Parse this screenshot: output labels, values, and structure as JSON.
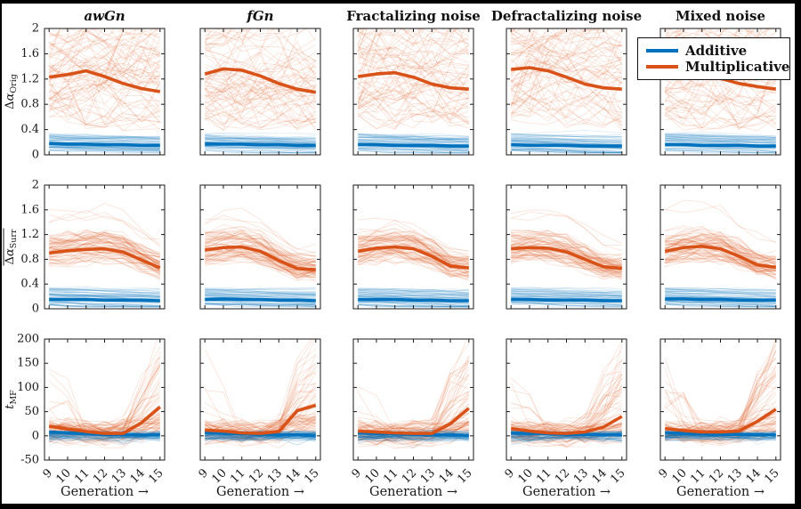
{
  "figure": {
    "columns": [
      {
        "label": "awGn"
      },
      {
        "label": "fGn"
      },
      {
        "label": "Fractalizing noise"
      },
      {
        "label": "Defractalizing noise"
      },
      {
        "label": "Mixed noise"
      }
    ],
    "xlabel": "Generation →",
    "x_ticks": [
      "9",
      "10",
      "11",
      "12",
      "13",
      "14",
      "15"
    ],
    "rows": [
      {
        "ylabel": {
          "base": "Δα",
          "sub": "Orig",
          "overline": false,
          "italic": false
        },
        "ylim": [
          0,
          2
        ],
        "yticks": [
          "0",
          "0.4",
          "0.8",
          "1.2",
          "1.6",
          "2"
        ]
      },
      {
        "ylabel": {
          "base": "Δα",
          "sub": "Surr",
          "overline": true,
          "italic": false
        },
        "ylim": [
          0,
          2
        ],
        "yticks": [
          "0",
          "0.4",
          "0.8",
          "1.2",
          "1.6",
          "2"
        ]
      },
      {
        "ylabel": {
          "base": "t",
          "sub": "MF",
          "overline": false,
          "italic": true
        },
        "ylim": [
          -50,
          200
        ],
        "yticks": [
          "-50",
          "0",
          "50",
          "100",
          "150",
          "200"
        ]
      }
    ]
  },
  "legend": {
    "items": [
      {
        "label": "Additive",
        "color": "#0072BD"
      },
      {
        "label": "Multiplicative",
        "color": "#D95319"
      }
    ]
  },
  "colors": {
    "additive": "#0072BD",
    "multiplicative": "#D95319",
    "frame": "#1a1a1a"
  },
  "chart_data": [
    {
      "row": 1,
      "col": 1,
      "column": "awGn",
      "metric": "Δα_Orig",
      "type": "line",
      "x": [
        9,
        10,
        11,
        12,
        13,
        14,
        15
      ],
      "ylim": [
        0,
        2
      ],
      "series": [
        {
          "name": "Additive",
          "values": [
            0.18,
            0.17,
            0.17,
            0.16,
            0.16,
            0.15,
            0.15
          ]
        },
        {
          "name": "Multiplicative",
          "values": [
            1.23,
            1.27,
            1.33,
            1.24,
            1.13,
            1.05,
            1.0
          ]
        }
      ]
    },
    {
      "row": 1,
      "col": 2,
      "column": "fGn",
      "metric": "Δα_Orig",
      "type": "line",
      "x": [
        9,
        10,
        11,
        12,
        13,
        14,
        15
      ],
      "ylim": [
        0,
        2
      ],
      "series": [
        {
          "name": "Additive",
          "values": [
            0.17,
            0.17,
            0.17,
            0.16,
            0.16,
            0.15,
            0.15
          ]
        },
        {
          "name": "Multiplicative",
          "values": [
            1.28,
            1.36,
            1.34,
            1.25,
            1.13,
            1.04,
            0.99
          ]
        }
      ]
    },
    {
      "row": 1,
      "col": 3,
      "column": "Fractalizing noise",
      "metric": "Δα_Orig",
      "type": "line",
      "x": [
        9,
        10,
        11,
        12,
        13,
        14,
        15
      ],
      "ylim": [
        0,
        2
      ],
      "series": [
        {
          "name": "Additive",
          "values": [
            0.16,
            0.16,
            0.15,
            0.15,
            0.15,
            0.14,
            0.14
          ]
        },
        {
          "name": "Multiplicative",
          "values": [
            1.24,
            1.28,
            1.3,
            1.23,
            1.12,
            1.06,
            1.04
          ]
        }
      ]
    },
    {
      "row": 1,
      "col": 4,
      "column": "Defractalizing noise",
      "metric": "Δα_Orig",
      "type": "line",
      "x": [
        9,
        10,
        11,
        12,
        13,
        14,
        15
      ],
      "ylim": [
        0,
        2
      ],
      "series": [
        {
          "name": "Additive",
          "values": [
            0.16,
            0.15,
            0.15,
            0.15,
            0.14,
            0.14,
            0.14
          ]
        },
        {
          "name": "Multiplicative",
          "values": [
            1.35,
            1.38,
            1.33,
            1.23,
            1.12,
            1.06,
            1.04
          ]
        }
      ]
    },
    {
      "row": 1,
      "col": 5,
      "column": "Mixed noise",
      "metric": "Δα_Orig",
      "type": "line",
      "x": [
        9,
        10,
        11,
        12,
        13,
        14,
        15
      ],
      "ylim": [
        0,
        2
      ],
      "series": [
        {
          "name": "Additive",
          "values": [
            0.16,
            0.16,
            0.15,
            0.15,
            0.15,
            0.14,
            0.14
          ]
        },
        {
          "name": "Multiplicative",
          "values": [
            1.29,
            1.32,
            1.29,
            1.21,
            1.13,
            1.08,
            1.04
          ]
        }
      ]
    },
    {
      "row": 2,
      "col": 1,
      "column": "awGn",
      "metric": "Δα_Surr (mean)",
      "type": "line",
      "x": [
        9,
        10,
        11,
        12,
        13,
        14,
        15
      ],
      "ylim": [
        0,
        2
      ],
      "series": [
        {
          "name": "Additive",
          "values": [
            0.15,
            0.15,
            0.15,
            0.14,
            0.14,
            0.14,
            0.13
          ]
        },
        {
          "name": "Multiplicative",
          "values": [
            0.9,
            0.94,
            0.96,
            0.97,
            0.92,
            0.79,
            0.66
          ]
        }
      ]
    },
    {
      "row": 2,
      "col": 2,
      "column": "fGn",
      "metric": "Δα_Surr (mean)",
      "type": "line",
      "x": [
        9,
        10,
        11,
        12,
        13,
        14,
        15
      ],
      "ylim": [
        0,
        2
      ],
      "series": [
        {
          "name": "Additive",
          "values": [
            0.15,
            0.16,
            0.15,
            0.15,
            0.14,
            0.14,
            0.13
          ]
        },
        {
          "name": "Multiplicative",
          "values": [
            0.95,
            0.99,
            1.0,
            0.93,
            0.78,
            0.65,
            0.63
          ]
        }
      ]
    },
    {
      "row": 2,
      "col": 3,
      "column": "Fractalizing noise",
      "metric": "Δα_Surr (mean)",
      "type": "line",
      "x": [
        9,
        10,
        11,
        12,
        13,
        14,
        15
      ],
      "ylim": [
        0,
        2
      ],
      "series": [
        {
          "name": "Additive",
          "values": [
            0.15,
            0.15,
            0.15,
            0.14,
            0.14,
            0.13,
            0.13
          ]
        },
        {
          "name": "Multiplicative",
          "values": [
            0.93,
            0.98,
            1.0,
            0.97,
            0.85,
            0.69,
            0.66
          ]
        }
      ]
    },
    {
      "row": 2,
      "col": 4,
      "column": "Defractalizing noise",
      "metric": "Δα_Surr (mean)",
      "type": "line",
      "x": [
        9,
        10,
        11,
        12,
        13,
        14,
        15
      ],
      "ylim": [
        0,
        2
      ],
      "series": [
        {
          "name": "Additive",
          "values": [
            0.15,
            0.15,
            0.14,
            0.14,
            0.14,
            0.13,
            0.13
          ]
        },
        {
          "name": "Multiplicative",
          "values": [
            0.97,
            0.99,
            0.98,
            0.92,
            0.8,
            0.68,
            0.65
          ]
        }
      ]
    },
    {
      "row": 2,
      "col": 5,
      "column": "Mixed noise",
      "metric": "Δα_Surr (mean)",
      "type": "line",
      "x": [
        9,
        10,
        11,
        12,
        13,
        14,
        15
      ],
      "ylim": [
        0,
        2
      ],
      "series": [
        {
          "name": "Additive",
          "values": [
            0.16,
            0.16,
            0.15,
            0.15,
            0.14,
            0.14,
            0.14
          ]
        },
        {
          "name": "Multiplicative",
          "values": [
            0.93,
            0.99,
            1.01,
            0.97,
            0.85,
            0.71,
            0.67
          ]
        }
      ]
    },
    {
      "row": 3,
      "col": 1,
      "column": "awGn",
      "metric": "t_MF",
      "type": "line",
      "x": [
        9,
        10,
        11,
        12,
        13,
        14,
        15
      ],
      "ylim": [
        -50,
        200
      ],
      "series": [
        {
          "name": "Additive",
          "values": [
            8,
            6,
            4,
            3,
            2,
            2,
            2
          ]
        },
        {
          "name": "Multiplicative",
          "values": [
            20,
            14,
            9,
            5,
            5,
            27,
            60
          ]
        }
      ]
    },
    {
      "row": 3,
      "col": 2,
      "column": "fGn",
      "metric": "t_MF",
      "type": "line",
      "x": [
        9,
        10,
        11,
        12,
        13,
        14,
        15
      ],
      "ylim": [
        -50,
        200
      ],
      "series": [
        {
          "name": "Additive",
          "values": [
            7,
            5,
            4,
            3,
            2,
            2,
            1
          ]
        },
        {
          "name": "Multiplicative",
          "values": [
            12,
            10,
            6,
            5,
            9,
            52,
            63
          ]
        }
      ]
    },
    {
      "row": 3,
      "col": 3,
      "column": "Fractalizing noise",
      "metric": "t_MF",
      "type": "line",
      "x": [
        9,
        10,
        11,
        12,
        13,
        14,
        15
      ],
      "ylim": [
        -50,
        200
      ],
      "series": [
        {
          "name": "Additive",
          "values": [
            6,
            5,
            4,
            3,
            2,
            2,
            1
          ]
        },
        {
          "name": "Multiplicative",
          "values": [
            10,
            8,
            6,
            5,
            5,
            25,
            57
          ]
        }
      ]
    },
    {
      "row": 3,
      "col": 4,
      "column": "Defractalizing noise",
      "metric": "t_MF",
      "type": "line",
      "x": [
        9,
        10,
        11,
        12,
        13,
        14,
        15
      ],
      "ylim": [
        -50,
        200
      ],
      "series": [
        {
          "name": "Additive",
          "values": [
            6,
            5,
            4,
            3,
            3,
            2,
            2
          ]
        },
        {
          "name": "Multiplicative",
          "values": [
            15,
            10,
            6,
            5,
            8,
            18,
            40
          ]
        }
      ]
    },
    {
      "row": 3,
      "col": 5,
      "column": "Mixed noise",
      "metric": "t_MF",
      "type": "line",
      "x": [
        9,
        10,
        11,
        12,
        13,
        14,
        15
      ],
      "ylim": [
        -50,
        200
      ],
      "series": [
        {
          "name": "Additive",
          "values": [
            7,
            5,
            4,
            3,
            3,
            2,
            2
          ]
        },
        {
          "name": "Multiplicative",
          "values": [
            15,
            11,
            8,
            8,
            10,
            30,
            55
          ]
        }
      ]
    }
  ]
}
